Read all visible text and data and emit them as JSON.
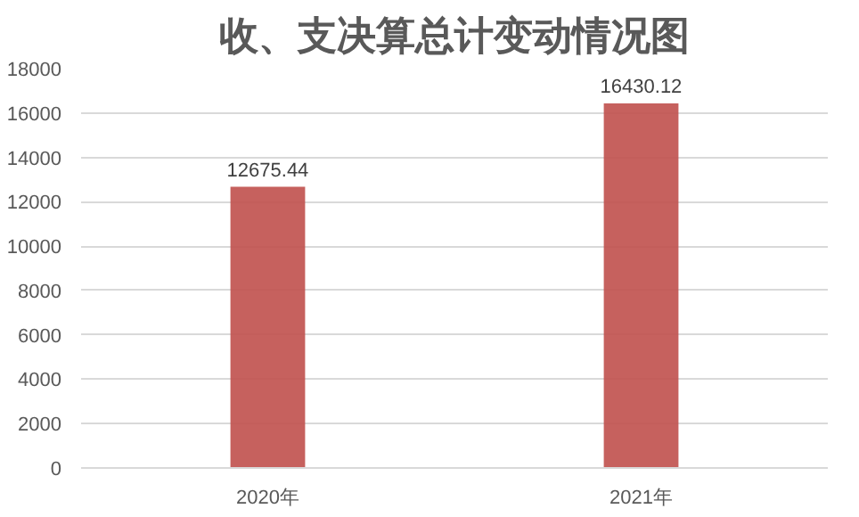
{
  "chart_data": {
    "type": "bar",
    "title": "收、支决算总计变动情况图",
    "categories": [
      "2020年",
      "2021年"
    ],
    "values": [
      12675.44,
      16430.12
    ],
    "color": "#c0504d",
    "ylim": [
      0,
      18000
    ],
    "yticks": [
      0,
      2000,
      4000,
      6000,
      8000,
      10000,
      12000,
      14000,
      16000,
      18000
    ],
    "grid": "y",
    "data_labels": true
  }
}
